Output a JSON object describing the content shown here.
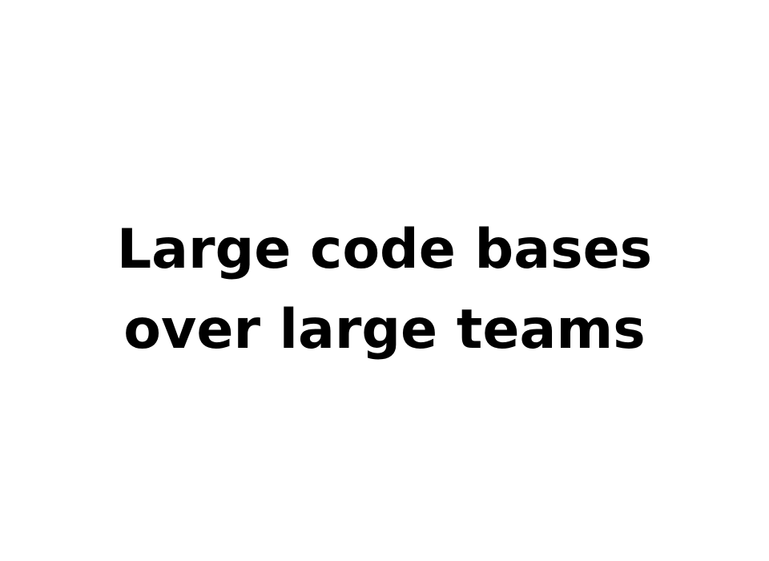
{
  "slide": {
    "title_lines": [
      "Large code bases",
      "over large teams"
    ],
    "text_color": "#000000",
    "background_color": "#ffffff"
  }
}
